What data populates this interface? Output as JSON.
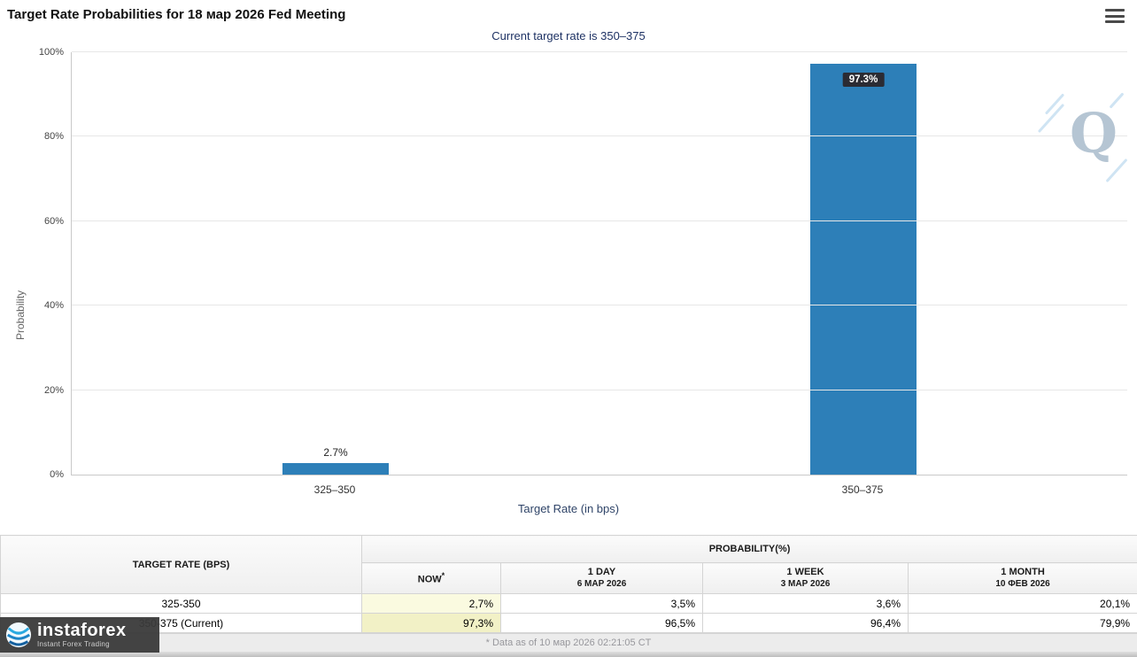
{
  "header": {
    "title": "Target Rate Probabilities for 18 мар 2026 Fed Meeting",
    "subtitle": "Current target rate is 350–375"
  },
  "chart_data": {
    "type": "bar",
    "title": "Target Rate Probabilities for 18 мар 2026 Fed Meeting",
    "categories": [
      "325–350",
      "350–375"
    ],
    "values": [
      2.7,
      97.3
    ],
    "bar_labels": [
      "2.7%",
      "97.3%"
    ],
    "label_styles": [
      "plain",
      "boxed"
    ],
    "xlabel": "Target Rate (in bps)",
    "ylabel": "Probability",
    "ylim": [
      0,
      100
    ],
    "yticks": [
      0,
      20,
      40,
      60,
      80,
      100
    ],
    "ytick_labels": [
      "0%",
      "20%",
      "40%",
      "60%",
      "80%",
      "100%"
    ],
    "grid": true,
    "legend": "none",
    "bar_color": "#2d7fb8"
  },
  "table": {
    "header": {
      "target_rate": "TARGET RATE (BPS)",
      "probability": "PROBABILITY(%)",
      "columns": [
        {
          "line1": "NOW",
          "sup": "*",
          "line2": ""
        },
        {
          "line1": "1 DAY",
          "line2": "6 МАР 2026"
        },
        {
          "line1": "1 WEEK",
          "line2": "3 МАР 2026"
        },
        {
          "line1": "1 MONTH",
          "line2": "10 ФЕВ 2026"
        }
      ]
    },
    "rows": [
      {
        "target": "325-350",
        "values": [
          "2,7%",
          "3,5%",
          "3,6%",
          "20,1%"
        ]
      },
      {
        "target": "350-375 (Current)",
        "values": [
          "97,3%",
          "96,5%",
          "96,4%",
          "79,9%"
        ]
      }
    ],
    "footnote": "* Data as of 10 мар 2026 02:21:05 CT"
  },
  "branding": {
    "name": "instaforex",
    "tagline": "Instant Forex Trading"
  },
  "watermark_letter": "Q"
}
